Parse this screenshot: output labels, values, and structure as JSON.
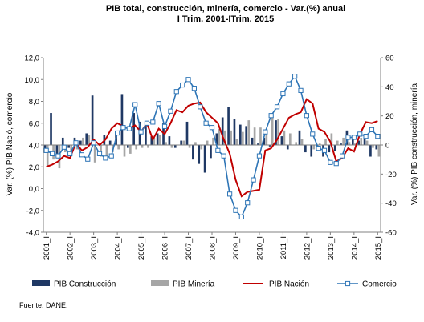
{
  "chart_data": {
    "type": "bar+line",
    "title_line1": "PIB total, construcción, minería, comercio - Var.(%) anual",
    "title_line2": "I Trim. 2001-ITrim. 2015",
    "ylabel_left": "Var. (%) PIB Nació, comercio",
    "ylabel_right": "Var. (%) PIB construcción, minería",
    "ylim_left": [
      -4,
      12
    ],
    "yticks_left": [
      "12,0",
      "10,0",
      "8,0",
      "6,0",
      "4,0",
      "2,0",
      "0,0",
      "-2,0",
      "-4,0"
    ],
    "ylim_right": [
      -60,
      60
    ],
    "yticks_right": [
      "60",
      "40",
      "20",
      "0",
      "-20",
      "-40",
      "-60"
    ],
    "x_labels": [
      "2001_I",
      "2002_I",
      "2003_I",
      "2004_I",
      "2005_I",
      "2006_I",
      "2007_I",
      "2008_I",
      "2009_I",
      "2010_I",
      "2011_I",
      "2012_I",
      "2013_I",
      "2014_I",
      "2015_I"
    ],
    "n_quarters": 57,
    "grid": false,
    "legend_position": "bottom",
    "source": "Fuente: DANE.",
    "series": [
      {
        "name": "PIB Construcción",
        "axis": "right",
        "type": "bar",
        "color": "#1f3864",
        "values": [
          -5,
          22,
          -8,
          5,
          -2,
          5,
          3,
          8,
          34,
          0,
          7,
          3,
          7,
          35,
          -2,
          22,
          16,
          15,
          6,
          8,
          15,
          6,
          -2,
          3,
          16,
          -10,
          -13,
          -19,
          -9,
          8,
          19,
          26,
          18,
          14,
          13,
          5,
          1,
          5,
          -1,
          17,
          6,
          -3,
          0,
          10,
          -5,
          -8,
          -4,
          -8,
          -5,
          -4,
          1,
          10,
          5,
          3,
          7,
          -8,
          -3
        ]
      },
      {
        "name": "PIB Minería",
        "axis": "right",
        "type": "bar",
        "color": "#a6a6a6",
        "values": [
          -15,
          -10,
          -16,
          -5,
          -8,
          -3,
          5,
          7,
          -12,
          -8,
          -10,
          -5,
          -3,
          -8,
          -6,
          -3,
          -2,
          -2,
          5,
          7,
          2,
          -2,
          0,
          3,
          -2,
          2,
          -3,
          3,
          5,
          11,
          10,
          10,
          4,
          9,
          17,
          12,
          12,
          8,
          19,
          18,
          10,
          8,
          2,
          4,
          0,
          -3,
          1,
          4,
          8,
          3,
          5,
          2,
          1,
          5,
          3,
          -2,
          -8
        ]
      },
      {
        "name": "PIB Nación",
        "axis": "left",
        "type": "line",
        "color": "#c00000",
        "values": [
          2.0,
          2.2,
          2.5,
          3.0,
          2.8,
          4.2,
          3.5,
          3.8,
          4.5,
          4.0,
          4.5,
          5.5,
          6.0,
          5.7,
          5.5,
          5.8,
          5.2,
          6.0,
          4.5,
          5.5,
          5.0,
          6.0,
          7.2,
          7.0,
          7.6,
          7.8,
          7.9,
          7.0,
          6.5,
          6.0,
          4.5,
          3.2,
          0.8,
          -0.7,
          -0.3,
          -0.2,
          -0.1,
          3.5,
          3.7,
          4.5,
          5.5,
          6.5,
          6.8,
          7.0,
          8.2,
          7.8,
          5.5,
          5.2,
          4.3,
          2.5,
          2.8,
          3.7,
          3.4,
          5.0,
          6.1,
          6.0,
          6.2
        ]
      },
      {
        "name": "Comercio",
        "axis": "left",
        "type": "line",
        "color": "#2e75b6",
        "values": [
          3.5,
          3.2,
          3.0,
          3.8,
          3.2,
          4.2,
          3.1,
          2.7,
          4.2,
          3.2,
          2.8,
          3.0,
          5.1,
          5.6,
          5.5,
          7.7,
          5.2,
          6.0,
          6.1,
          7.8,
          5.7,
          7.1,
          8.9,
          9.5,
          10.0,
          9.2,
          7.5,
          6.0,
          5.6,
          3.5,
          3.0,
          -0.5,
          -2.0,
          -2.6,
          -1.3,
          0.8,
          3.0,
          5.2,
          6.7,
          7.5,
          8.7,
          9.6,
          10.3,
          9.0,
          6.7,
          5.0,
          3.7,
          3.5,
          2.4,
          2.3,
          3.0,
          4.7,
          4.7,
          5.0,
          4.8,
          5.4,
          4.8
        ]
      }
    ]
  }
}
